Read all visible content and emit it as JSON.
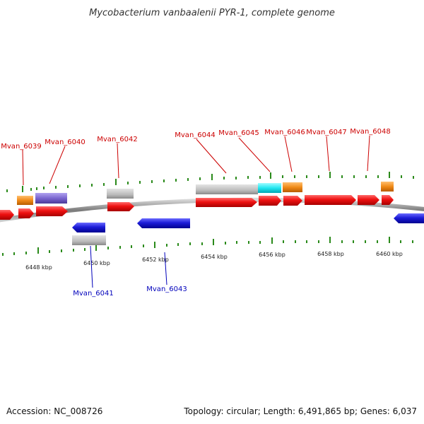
{
  "title": "Mycobacterium vanbaalenii PYR-1, complete genome",
  "colors": {
    "forward_cds": "#ee1111",
    "reverse_cds": "#1d1dd8",
    "gene": "#bbbbbb",
    "orange_feature": "#f08a18",
    "cyan_feature": "#22e6f0",
    "purple_feature": "#7a66d0",
    "forward_label": "#cc0000",
    "reverse_label": "#0000bb",
    "tick": "#2a8a1a",
    "backbone": "#888888"
  },
  "kbp_labels": [
    "6448 kbp",
    "6450 kbp",
    "6452 kbp",
    "6454 kbp",
    "6456 kbp",
    "6458 kbp",
    "6460 kbp"
  ],
  "forward_genes": [
    "Mvan_6039",
    "Mvan_6040",
    "Mvan_6042",
    "Mvan_6044",
    "Mvan_6045",
    "Mvan_6046",
    "Mvan_6047",
    "Mvan_6048"
  ],
  "reverse_genes": [
    "Mvan_6041",
    "Mvan_6043"
  ],
  "footer": {
    "accession": "Accession: NC_008726",
    "summary": "Topology: circular; Length: 6,491,865 bp; Genes: 6,037"
  }
}
